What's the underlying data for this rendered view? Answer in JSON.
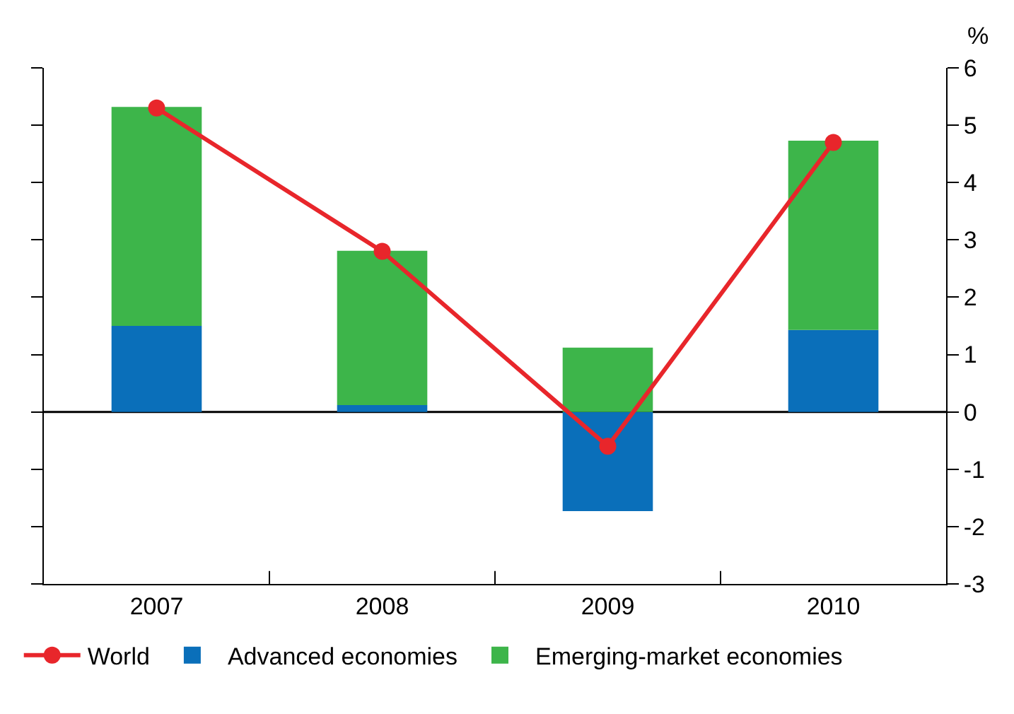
{
  "chart_data": {
    "type": "bar",
    "stacked": true,
    "ylabel": "%",
    "categories": [
      "2007",
      "2008",
      "2009",
      "2010"
    ],
    "series": [
      {
        "name": "World",
        "type": "line",
        "color": "#e8262b",
        "marker": "circle",
        "values": [
          5.3,
          2.8,
          -0.6,
          4.7
        ]
      },
      {
        "name": "Advanced economies",
        "color": "#0a6fba",
        "values": [
          1.5,
          0.12,
          -1.73,
          1.43
        ]
      },
      {
        "name": "Emerging-market economies",
        "color": "#3db54a",
        "values": [
          3.82,
          2.69,
          1.12,
          3.3
        ]
      }
    ],
    "ylim": [
      -3,
      6
    ],
    "yticks": [
      -3,
      -2,
      -1,
      0,
      1,
      2,
      3,
      4,
      5,
      6
    ],
    "grid": false,
    "ref_lines": [
      {
        "axis": "y",
        "value": 0,
        "color": "#000000"
      }
    ],
    "legend": "bottom"
  }
}
